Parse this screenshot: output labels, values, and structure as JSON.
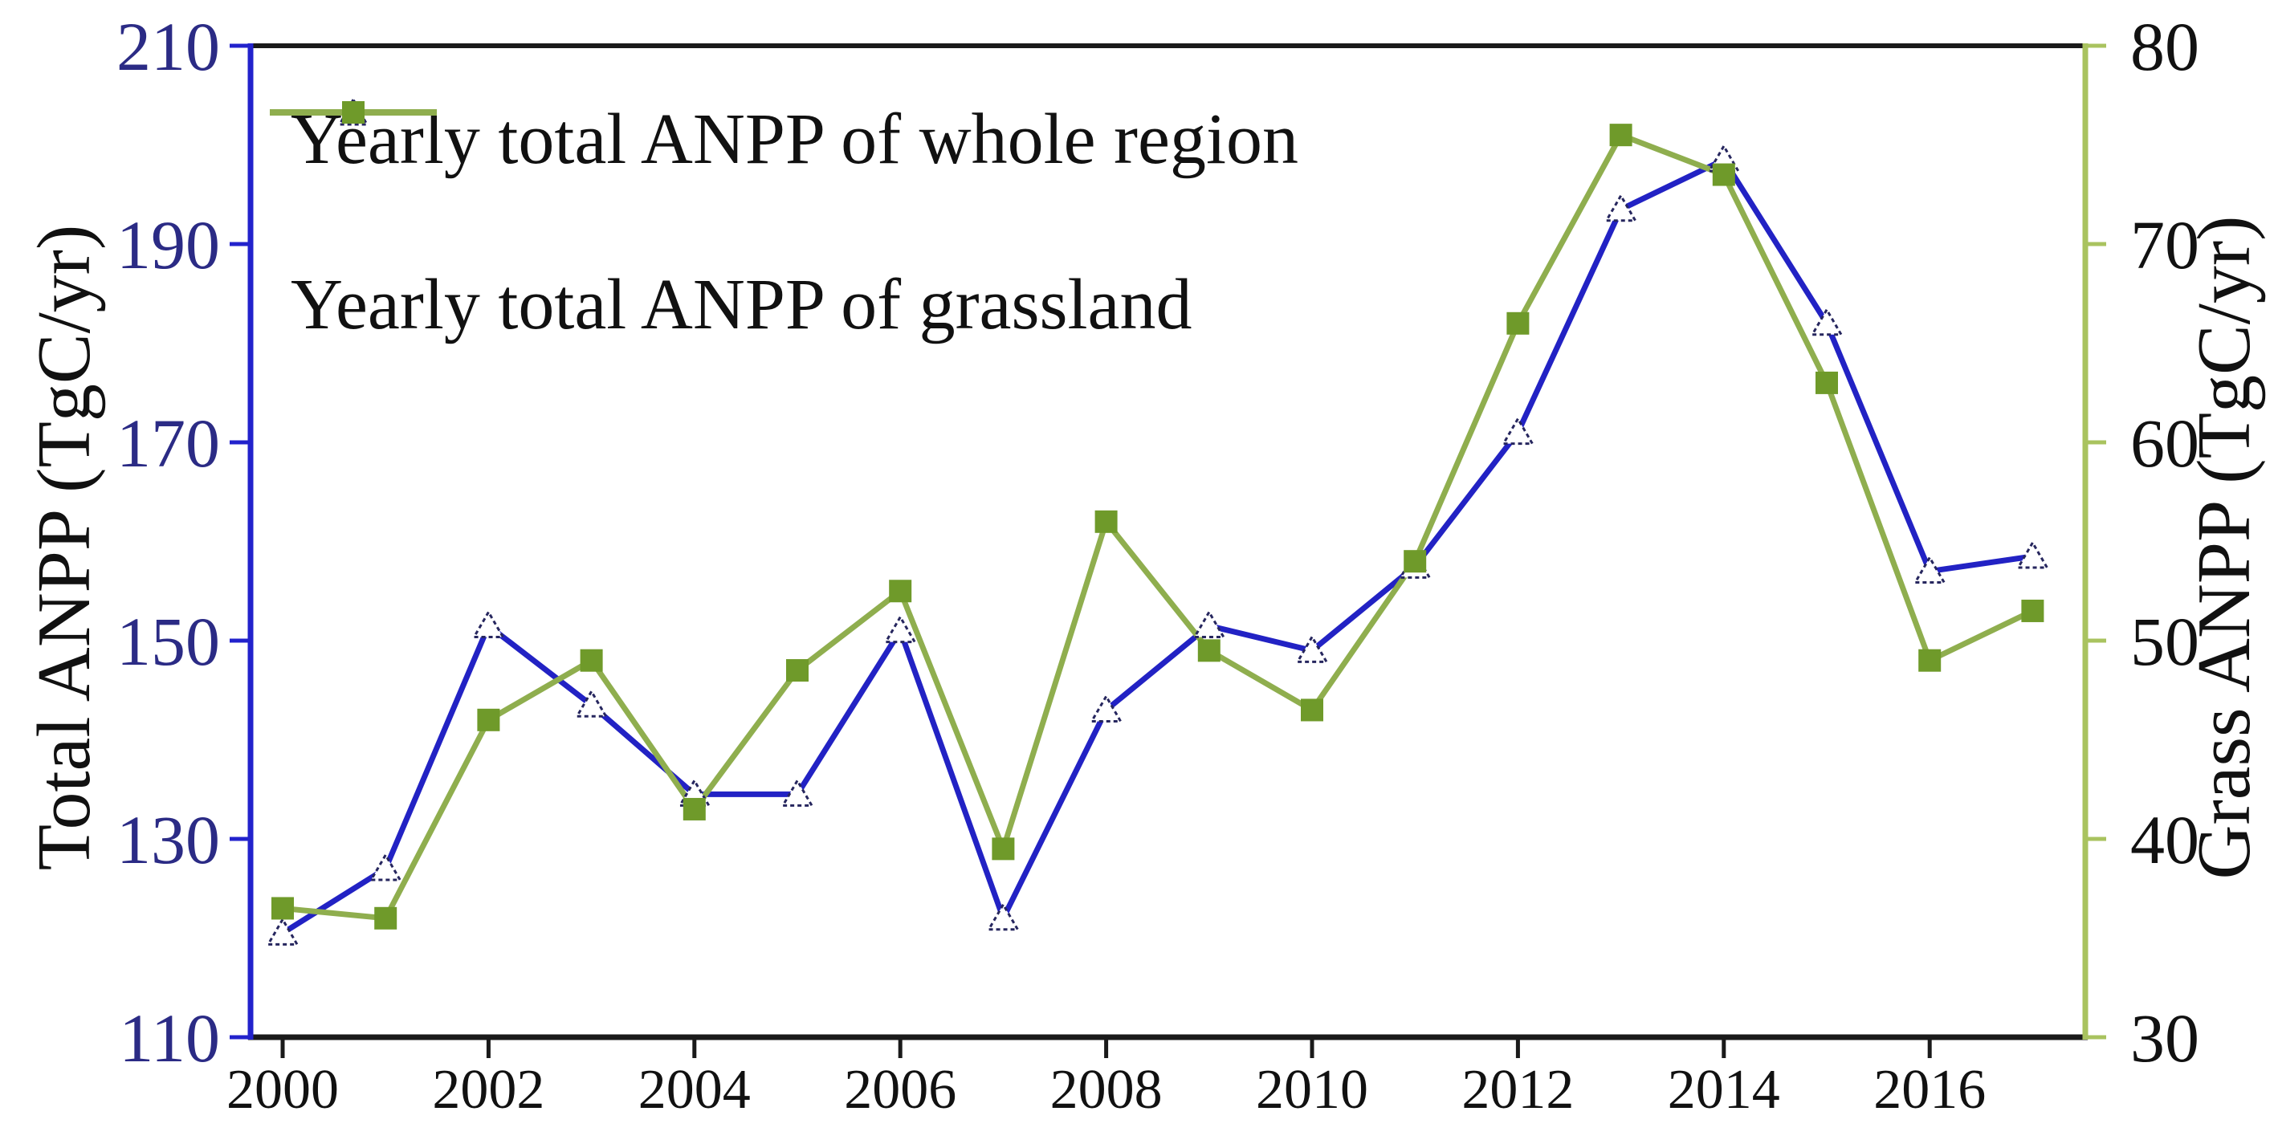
{
  "chart_data": {
    "type": "line",
    "title": "",
    "x": [
      2000,
      2001,
      2002,
      2003,
      2004,
      2005,
      2006,
      2007,
      2008,
      2009,
      2010,
      2011,
      2012,
      2013,
      2014,
      2015,
      2016,
      2017
    ],
    "x_tick_labels": [
      "2000",
      "2002",
      "2004",
      "2006",
      "2008",
      "2010",
      "2012",
      "2014",
      "2016"
    ],
    "series": [
      {
        "name": "Yearly total ANPP of whole region",
        "axis": "left",
        "line_color": "#2222c4",
        "marker": "open-triangle",
        "marker_edge_color": "#26265e",
        "marker_fill": "#ffffff",
        "values": [
          120.5,
          127,
          151.5,
          143.5,
          134.5,
          134.5,
          151,
          122,
          143,
          151.5,
          149,
          157.5,
          171,
          193.5,
          198.5,
          182,
          157,
          158.5
        ]
      },
      {
        "name": "Yearly total ANPP of grassland",
        "axis": "right",
        "line_color": "#8fae4e",
        "marker": "filled-square",
        "marker_edge_color": "#6f9a2a",
        "marker_fill": "#6f9a2a",
        "values": [
          36.5,
          36,
          46,
          49,
          41.5,
          48.5,
          52.5,
          39.5,
          56,
          49.5,
          46.5,
          54,
          66,
          75.5,
          73.5,
          63,
          49,
          51.5
        ]
      }
    ],
    "left_axis": {
      "label": "Total ANPP (TgC/yr)",
      "min": 110,
      "max": 210,
      "ticks": [
        110,
        130,
        150,
        170,
        190,
        210
      ],
      "axis_color": "#2222cc",
      "tick_label_color": "#2b2b85"
    },
    "right_axis": {
      "label": "Grass ANPP (TgC/yr)",
      "min": 30,
      "max": 80,
      "ticks": [
        30,
        40,
        50,
        60,
        70,
        80
      ],
      "axis_color": "#a9c35f",
      "tick_label_color": "#111111"
    },
    "x_axis": {
      "axis_color": "#1a1a1a",
      "tick_label_color": "#111111"
    },
    "legend_position": "top-left",
    "grid": false
  }
}
